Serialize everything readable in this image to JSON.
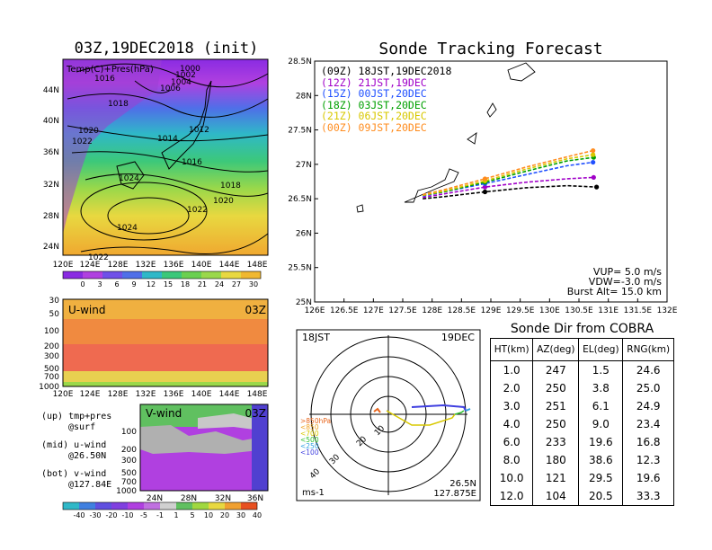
{
  "panels": {
    "synoptic": {
      "title": "03Z,19DEC2018 (init)",
      "label": "Temp(C)+Pres(hPa)",
      "lat_ticks": [
        "44N",
        "40N",
        "36N",
        "32N",
        "28N",
        "24N"
      ],
      "lon_ticks": [
        "120E",
        "124E",
        "128E",
        "132E",
        "136E",
        "140E",
        "144E",
        "148E"
      ],
      "isobar_labels": [
        "1016",
        "1018",
        "1020",
        "1022",
        "1024",
        "1014",
        "1012",
        "1016",
        "1018",
        "1020",
        "1022",
        "1024",
        "1022",
        "1006",
        "1004",
        "1002",
        "1000"
      ],
      "colorbar_ticks": [
        "0",
        "3",
        "6",
        "9",
        "12",
        "15",
        "18",
        "21",
        "24",
        "27",
        "30"
      ]
    },
    "uwind": {
      "label": "U-wind",
      "time": "03Z",
      "p_ticks": [
        "30",
        "50",
        "100",
        "200",
        "300",
        "500",
        "700",
        "1000"
      ],
      "lon_ticks": [
        "120E",
        "124E",
        "128E",
        "132E",
        "136E",
        "140E",
        "144E",
        "148E"
      ]
    },
    "vwind": {
      "label": "V-wind",
      "time": "03Z",
      "p_ticks": [
        "100",
        "200",
        "300",
        "500",
        "700",
        "1000"
      ],
      "lat_ticks": [
        "24N",
        "28N",
        "32N",
        "36N"
      ],
      "colorbar_ticks": [
        "-40",
        "-30",
        "-20",
        "-10",
        "-5",
        "-1",
        "1",
        "5",
        "10",
        "20",
        "30",
        "40"
      ]
    },
    "legend_notes": [
      {
        "line1": "(up) tmp+pres",
        "line2": "@surf"
      },
      {
        "line1": "(mid) u-wind",
        "line2": "@26.50N"
      },
      {
        "line1": "(bot) v-wind",
        "line2": "@127.84E"
      }
    ],
    "polar": {
      "time_left": "18JST",
      "time_right": "19DEC",
      "range_labels": [
        "10",
        "20",
        "30",
        "40"
      ],
      "pressure_legend": [
        ">850hPa",
        "<850",
        "<700",
        "<500",
        "<250",
        "<100"
      ],
      "pressure_colors": [
        "#e8641a",
        "#f0a020",
        "#d8c800",
        "#30c030",
        "#30a0e0",
        "#4040e0"
      ],
      "unit": "ms-1",
      "coord_lat": "26.5N",
      "coord_lon": "127.875E"
    }
  },
  "chart_data": [
    {
      "type": "line",
      "title": "Sonde Tracking Forecast",
      "xlabel": "",
      "ylabel": "",
      "x_ticks": [
        "126E",
        "126.5E",
        "127E",
        "127.5E",
        "128E",
        "128.5E",
        "129E",
        "129.5E",
        "130E",
        "130.5E",
        "131E",
        "131.5E",
        "132E"
      ],
      "y_ticks": [
        "25N",
        "25.5N",
        "26N",
        "26.5N",
        "27N",
        "27.5N",
        "28N",
        "28.5N"
      ],
      "xlim": [
        126,
        132
      ],
      "ylim": [
        25,
        28.5
      ],
      "series": [
        {
          "name": "(09Z)  18JST,19DEC2018",
          "color": "#000000",
          "x": [
            127.84,
            128.2,
            128.9,
            129.6,
            130.3,
            130.8
          ],
          "y": [
            26.5,
            26.53,
            26.6,
            26.66,
            26.69,
            26.67
          ]
        },
        {
          "name": "(12Z)  21JST,19DEC",
          "color": "#a000c8",
          "x": [
            127.84,
            128.2,
            128.9,
            129.6,
            130.3,
            130.75
          ],
          "y": [
            26.52,
            26.57,
            26.67,
            26.74,
            26.79,
            26.81
          ]
        },
        {
          "name": "(15Z)  00JST,20DEC",
          "color": "#2050ff",
          "x": [
            127.84,
            128.2,
            128.9,
            129.6,
            130.3,
            130.74
          ],
          "y": [
            26.54,
            26.6,
            26.72,
            26.85,
            26.98,
            27.03
          ]
        },
        {
          "name": "(18Z)  03JST,20DEC",
          "color": "#00a000",
          "x": [
            127.84,
            128.2,
            128.9,
            129.6,
            130.3,
            130.75
          ],
          "y": [
            26.55,
            26.6,
            26.74,
            26.9,
            27.05,
            27.1
          ]
        },
        {
          "name": "(21Z)  06JST,20DEC",
          "color": "#d8c800",
          "x": [
            127.84,
            128.2,
            128.9,
            129.6,
            130.3,
            130.74
          ],
          "y": [
            26.55,
            26.61,
            26.76,
            26.93,
            27.08,
            27.14
          ]
        },
        {
          "name": "(00Z)  09JST,20DEC",
          "color": "#ff8c1e",
          "x": [
            127.84,
            128.2,
            128.9,
            129.6,
            130.3,
            130.74
          ],
          "y": [
            26.56,
            26.63,
            26.79,
            26.96,
            27.11,
            27.2
          ]
        }
      ],
      "annotations": [
        "VUP= 5.0 m/s",
        "VDW=-3.0 m/s",
        "Burst Alt= 15.0 km"
      ]
    },
    {
      "type": "table",
      "title": "Sonde Dir from COBRA",
      "columns": [
        "HT(km)",
        "AZ(deg)",
        "EL(deg)",
        "RNG(km)"
      ],
      "rows": [
        [
          "1.0",
          "247",
          "1.5",
          "24.6"
        ],
        [
          "2.0",
          "250",
          "3.8",
          "25.0"
        ],
        [
          "3.0",
          "251",
          "6.1",
          "24.9"
        ],
        [
          "4.0",
          "250",
          "9.0",
          "23.4"
        ],
        [
          "6.0",
          "233",
          "19.6",
          "16.8"
        ],
        [
          "8.0",
          "180",
          "38.6",
          "12.3"
        ],
        [
          "10.0",
          "121",
          "29.5",
          "19.6"
        ],
        [
          "12.0",
          "104",
          "20.5",
          "33.3"
        ]
      ]
    }
  ]
}
